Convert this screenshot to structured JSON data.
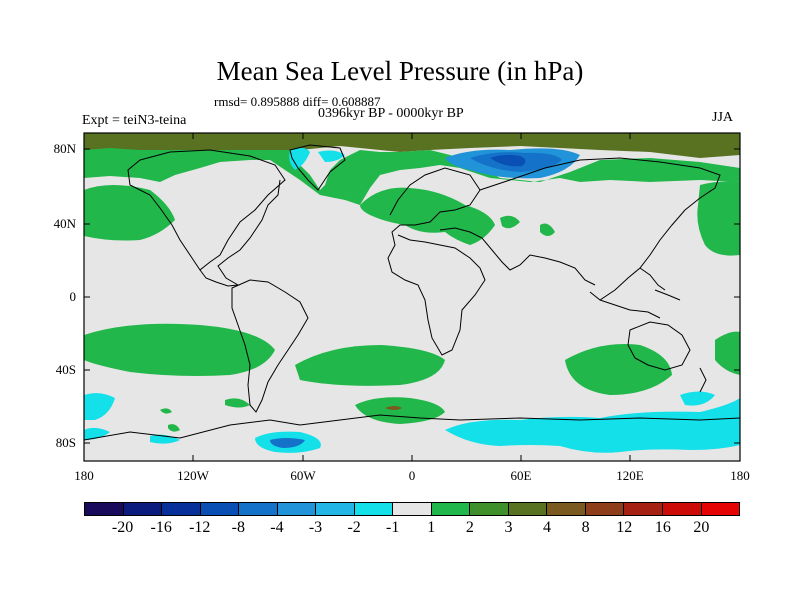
{
  "title": "Mean Sea Level Pressure (in hPa)",
  "stats": "rmsd= 0.895888 diff= 0.608887",
  "period": "0396kyr BP - 0000kyr BP",
  "experiment": "Expt = teiN3-teina",
  "season": "JJA",
  "lat_labels": [
    "80N",
    "40N",
    "0",
    "40S",
    "80S"
  ],
  "lon_labels": [
    "180",
    "120W",
    "60W",
    "0",
    "60E",
    "120E",
    "180"
  ],
  "colorbar": {
    "levels": [
      "-20",
      "-16",
      "-12",
      "-8",
      "-4",
      "-3",
      "-2",
      "-1",
      "1",
      "2",
      "3",
      "4",
      "8",
      "12",
      "16",
      "20"
    ],
    "colors": [
      "#1a0a5c",
      "#0b1c7e",
      "#08309a",
      "#0a4fb4",
      "#1472c8",
      "#2193d8",
      "#23b5e6",
      "#14e0ea",
      "#e6e6e6",
      "#22b74a",
      "#3f8f2a",
      "#587222",
      "#7a5a1e",
      "#8e3e18",
      "#a52212",
      "#cc0a06",
      "#e40404"
    ]
  },
  "colors": {
    "land_neutral": "#e6e6e6",
    "green_light": "#22b74a",
    "green_dark": "#3f8f2a",
    "olive": "#587222",
    "brown": "#7a5a1e",
    "cyan": "#14e0ea",
    "blue_light": "#2193d8",
    "blue": "#1472c8",
    "blue_dark": "#0a4fb4"
  }
}
